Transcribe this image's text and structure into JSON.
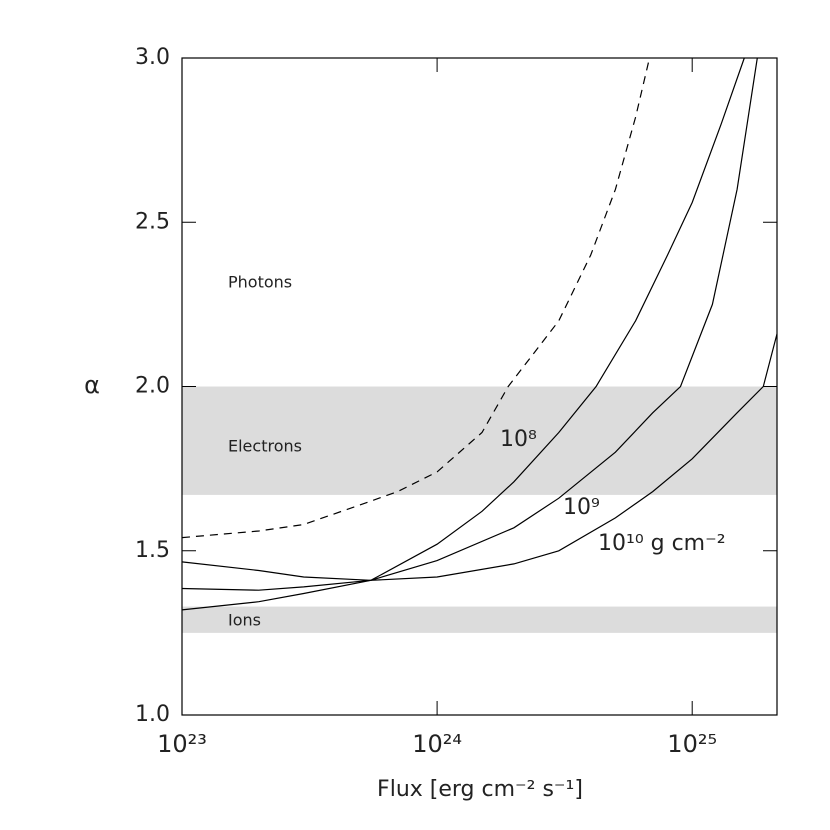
{
  "chart_data": {
    "type": "line",
    "xlabel": "Flux [erg cm⁻² s⁻¹]",
    "ylabel": "α",
    "xscale": "log",
    "xlim": [
      1e+23,
      2.15e+25
    ],
    "ylim": [
      1.0,
      3.0
    ],
    "xticks": [
      {
        "value": 1e+23,
        "label": "10²³"
      },
      {
        "value": 1e+24,
        "label": "10²⁴"
      },
      {
        "value": 1e+25,
        "label": "10²⁵"
      }
    ],
    "yticks": [
      {
        "value": 1.0,
        "label": "1.0"
      },
      {
        "value": 1.5,
        "label": "1.5"
      },
      {
        "value": 2.0,
        "label": "2.0"
      },
      {
        "value": 2.5,
        "label": "2.5"
      },
      {
        "value": 3.0,
        "label": "3.0"
      }
    ],
    "bands": [
      {
        "label": "Electrons",
        "range": [
          1.67,
          2.0
        ],
        "color": "#dcdcdc"
      },
      {
        "label": "Ions",
        "range": [
          1.25,
          1.33
        ],
        "color": "#dcdcdc"
      }
    ],
    "annotations": [
      "Photons"
    ],
    "series": [
      {
        "color": "#000000",
        "dashed": true,
        "x": [
          1e+23,
          2e+23,
          3e+23,
          5e+23,
          7e+23,
          1e+24,
          1.5e+24,
          1.9e+24,
          3e+24,
          4e+24,
          5e+24,
          6e+24,
          6.8e+24
        ],
        "values": [
          1.54,
          1.56,
          1.58,
          1.64,
          1.68,
          1.74,
          1.86,
          2.0,
          2.2,
          2.4,
          2.6,
          2.82,
          3.0
        ]
      },
      {
        "name": "10⁸",
        "color": "#000000",
        "dashed": false,
        "x": [
          1e+23,
          2e+23,
          3e+23,
          5.5e+23,
          1e+24,
          1.5e+24,
          2e+24,
          3e+24,
          4.2e+24,
          6e+24,
          8e+24,
          1e+25,
          1.3e+25,
          1.6e+25
        ],
        "values": [
          1.32,
          1.345,
          1.37,
          1.41,
          1.52,
          1.62,
          1.71,
          1.86,
          2.0,
          2.2,
          2.4,
          2.56,
          2.8,
          3.0
        ]
      },
      {
        "name": "10⁹",
        "color": "#000000",
        "dashed": false,
        "x": [
          1e+23,
          2e+23,
          3e+23,
          5.5e+23,
          1e+24,
          2e+24,
          3e+24,
          5e+24,
          7e+24,
          9e+24,
          1.2e+25,
          1.5e+25,
          1.8e+25
        ],
        "values": [
          1.385,
          1.38,
          1.39,
          1.41,
          1.47,
          1.57,
          1.66,
          1.8,
          1.92,
          2.0,
          2.25,
          2.6,
          3.0
        ]
      },
      {
        "name": "10¹⁰ g cm⁻²",
        "color": "#000000",
        "dashed": false,
        "x": [
          1e+23,
          2e+23,
          3e+23,
          5.5e+23,
          1e+24,
          2e+24,
          3e+24,
          5e+24,
          7e+24,
          1e+25,
          1.5e+25,
          1.9e+25,
          2.15e+25
        ],
        "values": [
          1.466,
          1.44,
          1.42,
          1.41,
          1.42,
          1.46,
          1.5,
          1.6,
          1.68,
          1.78,
          1.92,
          2.0,
          2.16
        ]
      }
    ]
  }
}
